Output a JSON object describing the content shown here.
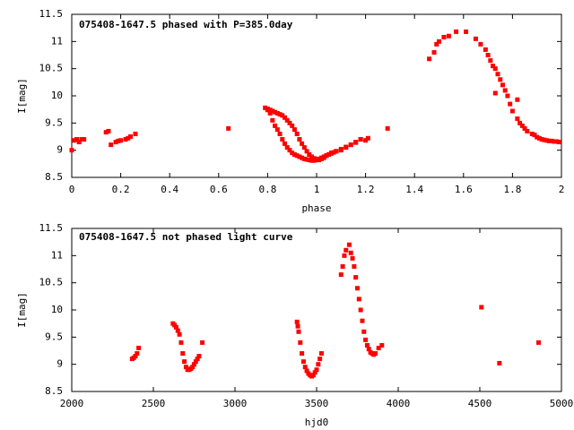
{
  "chart_data": [
    {
      "type": "scatter",
      "title": "075408-1647.5 phased with P=385.0day",
      "xlabel": "phase",
      "ylabel": "I[mag]",
      "xlim": [
        0,
        2
      ],
      "ylim": [
        11.5,
        8.5
      ],
      "y_inverted": true,
      "grid": false,
      "marker_color": "#ff0000",
      "xticks": [
        "0",
        "0.2",
        "0.4",
        "0.6",
        "0.8",
        "1",
        "1.2",
        "1.4",
        "1.6",
        "1.8",
        "2"
      ],
      "yticks": [
        "8.5",
        "9",
        "9.5",
        "10",
        "10.5",
        "11",
        "11.5"
      ],
      "x": [
        0.0,
        0.01,
        0.02,
        0.03,
        0.04,
        0.05,
        0.14,
        0.15,
        0.16,
        0.18,
        0.19,
        0.2,
        0.22,
        0.23,
        0.24,
        0.26,
        0.64,
        0.79,
        0.8,
        0.81,
        0.82,
        0.83,
        0.84,
        0.85,
        0.86,
        0.87,
        0.88,
        0.89,
        0.9,
        0.91,
        0.92,
        0.93,
        0.94,
        0.95,
        0.96,
        0.97,
        0.98,
        0.99,
        1.0,
        1.01,
        1.02,
        1.03,
        1.04,
        1.05,
        1.06,
        1.07,
        1.08,
        1.1,
        1.12,
        1.14,
        1.16,
        1.18,
        1.2,
        1.21,
        0.8,
        0.81,
        0.82,
        0.83,
        0.84,
        0.85,
        0.86,
        0.87,
        0.88,
        0.89,
        0.9,
        0.91,
        0.92,
        0.93,
        0.94,
        0.95,
        0.96,
        0.97,
        0.98,
        0.99,
        1.0,
        1.01,
        1.02,
        1.03,
        1.04,
        1.05,
        1.06,
        1.08,
        1.1,
        1.12,
        1.14,
        1.16,
        1.18,
        1.29,
        1.46,
        1.48,
        1.49,
        1.5,
        1.52,
        1.54,
        1.57,
        1.61,
        1.65,
        1.67,
        1.69,
        1.7,
        1.71,
        1.72,
        1.73,
        1.74,
        1.75,
        1.76,
        1.77,
        1.78,
        1.79,
        1.8,
        1.82,
        1.83,
        1.84,
        1.85,
        1.86,
        1.88,
        1.89,
        1.9,
        1.91,
        1.92,
        1.93,
        1.94,
        1.95,
        1.96,
        1.97,
        1.98,
        1.99,
        1.73,
        1.82
      ],
      "y": [
        9.0,
        9.18,
        9.2,
        9.15,
        9.2,
        9.2,
        9.33,
        9.35,
        9.1,
        9.15,
        9.17,
        9.18,
        9.2,
        9.22,
        9.25,
        9.3,
        9.4,
        9.78,
        9.74,
        9.68,
        9.55,
        9.45,
        9.38,
        9.3,
        9.2,
        9.12,
        9.05,
        9.0,
        8.95,
        8.92,
        8.9,
        8.88,
        8.86,
        8.84,
        8.83,
        8.82,
        8.81,
        8.81,
        8.82,
        8.84,
        8.86,
        8.88,
        8.9,
        8.92,
        8.94,
        8.96,
        8.98,
        9.02,
        9.06,
        9.1,
        9.15,
        9.2,
        9.18,
        9.22,
        9.76,
        9.74,
        9.72,
        9.7,
        9.68,
        9.66,
        9.64,
        9.6,
        9.55,
        9.5,
        9.45,
        9.38,
        9.3,
        9.2,
        9.12,
        9.05,
        8.98,
        8.92,
        8.88,
        8.85,
        8.83,
        8.82,
        8.84,
        8.86,
        8.9,
        8.92,
        8.95,
        8.98,
        9.0,
        9.05,
        9.1,
        9.14,
        9.2,
        9.4,
        10.68,
        10.8,
        10.95,
        11.0,
        11.08,
        11.1,
        11.18,
        11.18,
        11.05,
        10.95,
        10.85,
        10.75,
        10.65,
        10.55,
        10.5,
        10.4,
        10.3,
        10.2,
        10.1,
        10.0,
        9.85,
        9.72,
        9.58,
        9.5,
        9.45,
        9.4,
        9.35,
        9.3,
        9.28,
        9.24,
        9.22,
        9.2,
        9.19,
        9.18,
        9.17,
        9.17,
        9.16,
        9.16,
        9.15,
        10.05,
        9.93
      ]
    },
    {
      "type": "scatter",
      "title": "075408-1647.5 not phased light curve",
      "xlabel": "hjd0",
      "ylabel": "I[mag]",
      "xlim": [
        2000,
        5000
      ],
      "ylim": [
        11.5,
        8.5
      ],
      "y_inverted": true,
      "grid": false,
      "marker_color": "#ff0000",
      "xticks": [
        "2000",
        "2500",
        "3000",
        "3500",
        "4000",
        "4500",
        "5000"
      ],
      "yticks": [
        "8.5",
        "9",
        "9.5",
        "10",
        "10.5",
        "11",
        "11.5"
      ],
      "x": [
        2370,
        2380,
        2390,
        2400,
        2410,
        2620,
        2630,
        2640,
        2650,
        2660,
        2670,
        2680,
        2690,
        2700,
        2710,
        2720,
        2730,
        2740,
        2750,
        2760,
        2770,
        2780,
        2800,
        3380,
        3385,
        3390,
        3400,
        3410,
        3420,
        3430,
        3440,
        3450,
        3460,
        3470,
        3480,
        3490,
        3500,
        3510,
        3520,
        3530,
        3650,
        3660,
        3670,
        3680,
        3700,
        3710,
        3720,
        3730,
        3740,
        3750,
        3760,
        3770,
        3780,
        3790,
        3800,
        3810,
        3820,
        3830,
        3840,
        3850,
        3860,
        3880,
        3900,
        4510,
        4620,
        4860
      ],
      "y": [
        9.1,
        9.12,
        9.15,
        9.2,
        9.3,
        9.75,
        9.72,
        9.68,
        9.62,
        9.55,
        9.4,
        9.2,
        9.05,
        8.95,
        8.9,
        8.9,
        8.92,
        8.95,
        9.0,
        9.05,
        9.1,
        9.15,
        9.4,
        9.78,
        9.7,
        9.6,
        9.4,
        9.2,
        9.05,
        8.95,
        8.88,
        8.83,
        8.8,
        8.78,
        8.8,
        8.85,
        8.9,
        9.0,
        9.1,
        9.2,
        10.65,
        10.8,
        11.0,
        11.1,
        11.2,
        11.05,
        10.95,
        10.8,
        10.6,
        10.4,
        10.2,
        10.0,
        9.8,
        9.6,
        9.45,
        9.35,
        9.28,
        9.22,
        9.2,
        9.18,
        9.2,
        9.3,
        9.35,
        10.05,
        9.02,
        9.4
      ]
    }
  ]
}
